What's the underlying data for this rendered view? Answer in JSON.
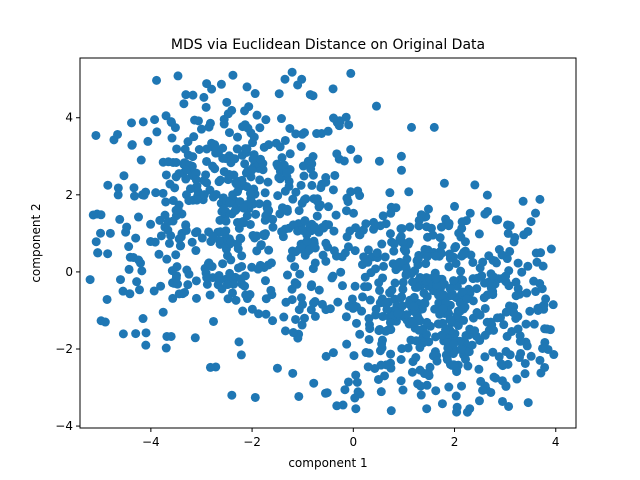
{
  "chart_data": {
    "type": "scatter",
    "title": "MDS via Euclidean Distance on Original Data",
    "xlabel": "component 1",
    "ylabel": "component 2",
    "xlim": [
      -5.4,
      4.4
    ],
    "ylim": [
      -4.05,
      5.55
    ],
    "xticks": [
      -4,
      -2,
      0,
      2,
      4
    ],
    "yticks": [
      -4,
      -2,
      0,
      2,
      4
    ],
    "xtick_labels": [
      "−4",
      "−2",
      "0",
      "2",
      "4"
    ],
    "ytick_labels": [
      "−4",
      "−2",
      "0",
      "2",
      "4"
    ],
    "grid": false,
    "marker_color": "#1f77b4",
    "clusters": [
      {
        "cx": -2.3,
        "cy": 1.6,
        "sx": 1.35,
        "sy": 1.55,
        "n": 520
      },
      {
        "cx": 1.6,
        "cy": -0.9,
        "sx": 1.25,
        "sy": 1.35,
        "n": 560
      }
    ],
    "points": [
      [
        -0.05,
        5.15
      ],
      [
        -1.35,
        5.0
      ],
      [
        -1.1,
        4.85
      ],
      [
        -2.1,
        4.8
      ],
      [
        -0.4,
        4.75
      ],
      [
        -0.85,
        4.6
      ],
      [
        -2.5,
        4.4
      ],
      [
        -3.7,
        4.05
      ],
      [
        -3.6,
        3.9
      ],
      [
        1.15,
        3.75
      ],
      [
        1.6,
        3.75
      ],
      [
        -4.85,
        2.25
      ],
      [
        -4.8,
        1.0
      ],
      [
        -5.05,
        0.5
      ],
      [
        -5.2,
        -0.2
      ],
      [
        -4.6,
        -0.2
      ],
      [
        -4.55,
        -0.5
      ],
      [
        -4.9,
        -1.3
      ],
      [
        -4.3,
        -1.6
      ],
      [
        -4.1,
        -1.9
      ],
      [
        -2.4,
        -3.2
      ],
      [
        -0.55,
        -3.15
      ],
      [
        0.05,
        -3.55
      ],
      [
        0.75,
        -3.6
      ],
      [
        1.45,
        -3.55
      ],
      [
        2.3,
        -3.55
      ],
      [
        3.1,
        -2.15
      ],
      [
        3.3,
        -1.8
      ],
      [
        3.65,
        -1.0
      ],
      [
        3.8,
        -0.7
      ],
      [
        3.95,
        -0.85
      ],
      [
        3.75,
        0.15
      ],
      [
        3.7,
        0.5
      ],
      [
        3.1,
        1.2
      ],
      [
        3.45,
        1.05
      ],
      [
        2.6,
        1.5
      ],
      [
        2.15,
        1.3
      ],
      [
        1.8,
        2.3
      ],
      [
        2.0,
        1.7
      ],
      [
        0.95,
        3.0
      ]
    ]
  }
}
